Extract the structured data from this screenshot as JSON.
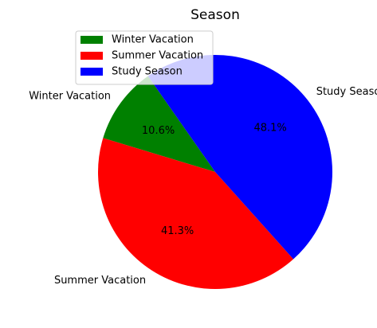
{
  "chart_data": {
    "type": "pie",
    "title": "Season",
    "start_angle_deg": 125,
    "direction": "counterclockwise",
    "slices": [
      {
        "label": "Winter Vacation",
        "value": 10.6,
        "pct_label": "10.6%",
        "color": "#008000"
      },
      {
        "label": "Summer Vacation",
        "value": 41.3,
        "pct_label": "41.3%",
        "color": "#ff0000"
      },
      {
        "label": "Study Season",
        "value": 48.1,
        "pct_label": "48.1%",
        "color": "#0000ff"
      }
    ],
    "legend": {
      "placement": "upper-left",
      "entries": [
        "Winter Vacation",
        "Summer Vacation",
        "Study Season"
      ]
    }
  }
}
